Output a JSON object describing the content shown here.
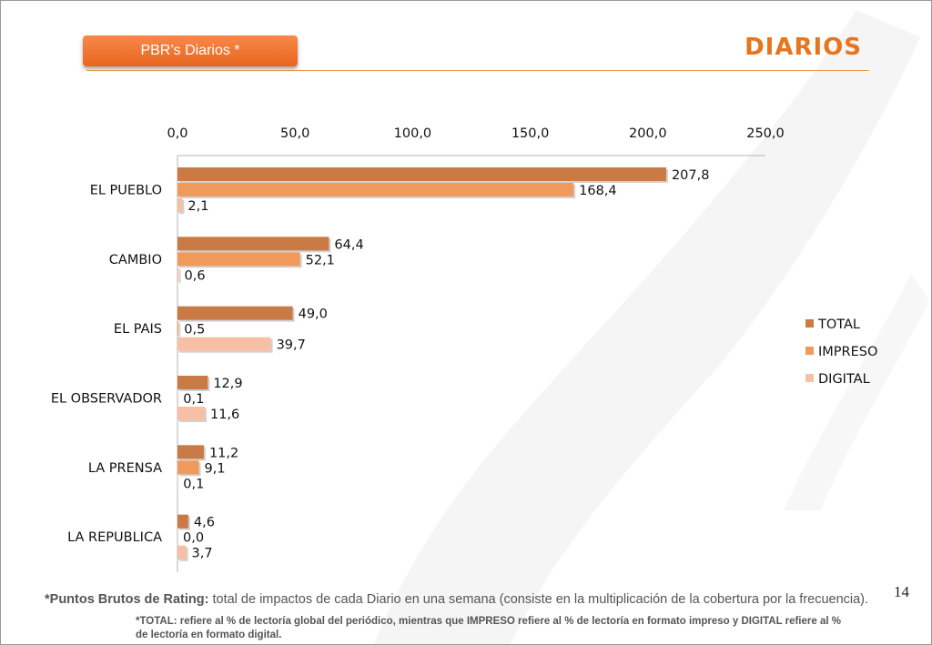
{
  "header": {
    "tag_label": "PBR’s Diarios  *",
    "title": "DIARIOS"
  },
  "page_number": "14",
  "footnote": {
    "term": "*Puntos Brutos de Rating:",
    "text": " total de impactos de cada Diario en una semana (consiste en la multiplicación de la cobertura por la frecuencia).",
    "detail": "*TOTAL: refiere al % de lectoría global del periódico, mientras que IMPRESO refiere al % de lectoría en formato impreso y DIGITAL refiere al % de lectoría en formato digital."
  },
  "chart_data": {
    "type": "bar",
    "orientation": "horizontal",
    "categories": [
      "EL PUEBLO",
      "CAMBIO",
      "EL PAIS",
      "EL OBSERVADOR",
      "LA PRENSA",
      "LA REPUBLICA"
    ],
    "series": [
      {
        "name": "TOTAL",
        "color": "#c97a45",
        "values": [
          207.8,
          64.4,
          49.0,
          12.9,
          11.2,
          4.6
        ],
        "labels": [
          "207,8",
          "64,4",
          "49,0",
          "12,9",
          "11,2",
          "4,6"
        ]
      },
      {
        "name": "IMPRESO",
        "color": "#f09a5c",
        "values": [
          168.4,
          52.1,
          0.5,
          0.1,
          9.1,
          0.0
        ],
        "labels": [
          "168,4",
          "52,1",
          "0,5",
          "0,1",
          "9,1",
          "0,0"
        ]
      },
      {
        "name": "DIGITAL",
        "color": "#f7c0a6",
        "values": [
          2.1,
          0.6,
          39.7,
          11.6,
          0.1,
          3.7
        ],
        "labels": [
          "2,1",
          "0,6",
          "39,7",
          "11,6",
          "0,1",
          "3,7"
        ]
      }
    ],
    "xlim": [
      0,
      250
    ],
    "x_ticks": [
      "0,0",
      "50,0",
      "100,0",
      "150,0",
      "200,0",
      "250,0"
    ],
    "x_axis_position": "top",
    "grid": false,
    "legend": "right"
  }
}
